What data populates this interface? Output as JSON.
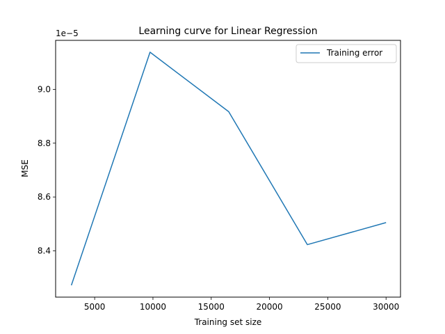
{
  "chart_data": {
    "type": "line",
    "title": "Learning curve for Linear Regression",
    "xlabel": "Training set size",
    "ylabel": "MSE",
    "y_offset_label": "1e−5",
    "xlim": [
      1650,
      31240
    ],
    "ylim": [
      8.228,
      9.182
    ],
    "x_ticks": [
      5000,
      10000,
      15000,
      20000,
      25000,
      30000
    ],
    "x_tick_labels": [
      "5000",
      "10000",
      "15000",
      "20000",
      "25000",
      "30000"
    ],
    "y_ticks": [
      8.4,
      8.6,
      8.8,
      9.0
    ],
    "y_tick_labels": [
      "8.4",
      "8.6",
      "8.8",
      "9.0"
    ],
    "grid": false,
    "legend_position": "top-right",
    "series": [
      {
        "name": "Training error",
        "color": "#1f77b4",
        "x": [
          3000,
          9750,
          16500,
          23250,
          30000
        ],
        "y": [
          8.272,
          9.138,
          8.917,
          8.423,
          8.505
        ]
      }
    ]
  }
}
